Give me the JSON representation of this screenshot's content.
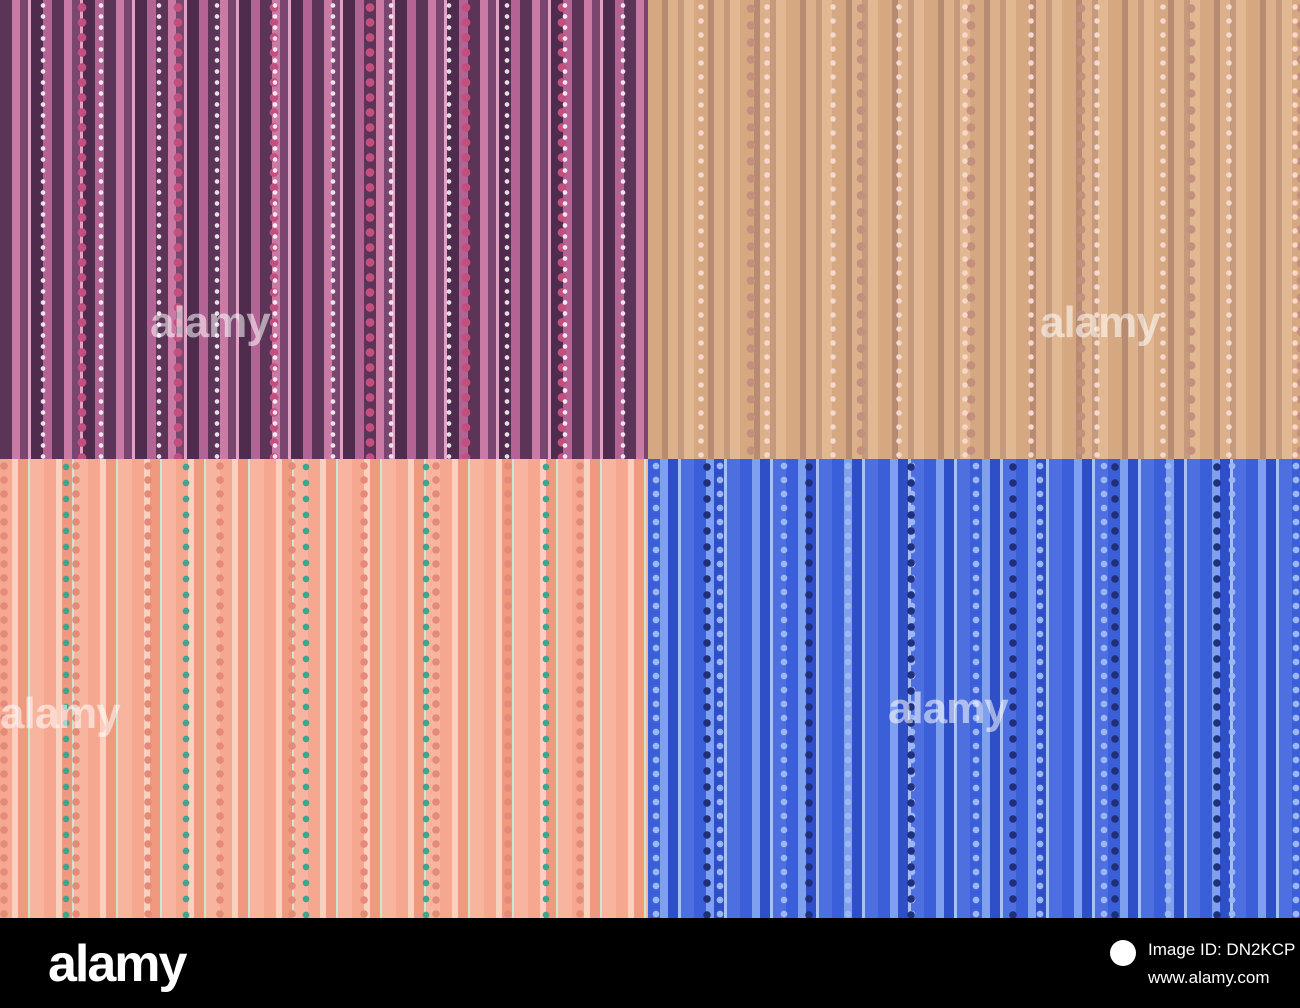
{
  "watermark": "alamy",
  "footer": {
    "logo": "alamy",
    "image_id": "Image ID: DN2KCP",
    "url": "www.alamy.com"
  }
}
